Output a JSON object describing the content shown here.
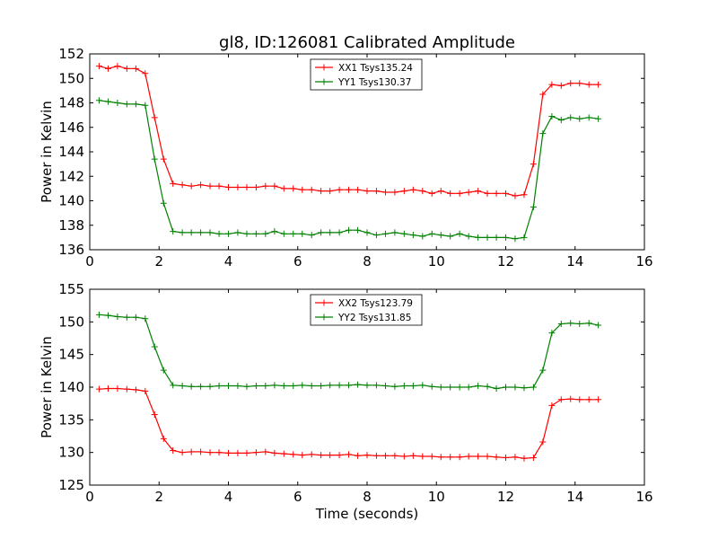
{
  "figure": {
    "title": "gl8, ID:126081 Calibrated Amplitude"
  },
  "colors": {
    "red": "#ff0000",
    "green": "#008000",
    "axes": "#000000",
    "background": "#ffffff"
  },
  "chart_data": [
    {
      "type": "line",
      "title": "gl8, ID:126081 Calibrated Amplitude",
      "xlabel": "",
      "ylabel": "Power in Kelvin",
      "xlim": [
        0,
        16
      ],
      "ylim": [
        136,
        152
      ],
      "xticks": [
        "0",
        "2",
        "4",
        "6",
        "8",
        "10",
        "12",
        "14",
        "16"
      ],
      "yticks": [
        "136",
        "138",
        "140",
        "142",
        "144",
        "146",
        "148",
        "150",
        "152"
      ],
      "grid": false,
      "legend_position": "upper center",
      "x": [
        0.27,
        0.53,
        0.8,
        1.07,
        1.33,
        1.6,
        1.87,
        2.13,
        2.4,
        2.67,
        2.93,
        3.2,
        3.47,
        3.73,
        4.0,
        4.27,
        4.53,
        4.8,
        5.07,
        5.33,
        5.6,
        5.87,
        6.13,
        6.4,
        6.67,
        6.93,
        7.2,
        7.47,
        7.73,
        8.0,
        8.27,
        8.53,
        8.8,
        9.07,
        9.33,
        9.6,
        9.87,
        10.13,
        10.4,
        10.67,
        10.93,
        11.2,
        11.47,
        11.73,
        12.0,
        12.27,
        12.53,
        12.8,
        13.07,
        13.33,
        13.6,
        13.87,
        14.13,
        14.4,
        14.67
      ],
      "series": [
        {
          "name": "XX1 Tsys135.24",
          "color": "#ff0000",
          "values": [
            151.0,
            150.8,
            151.0,
            150.8,
            150.8,
            150.4,
            146.8,
            143.4,
            141.4,
            141.3,
            141.2,
            141.3,
            141.2,
            141.2,
            141.1,
            141.1,
            141.1,
            141.1,
            141.2,
            141.2,
            141.0,
            141.0,
            140.9,
            140.9,
            140.8,
            140.8,
            140.9,
            140.9,
            140.9,
            140.8,
            140.8,
            140.7,
            140.7,
            140.8,
            140.9,
            140.8,
            140.6,
            140.8,
            140.6,
            140.6,
            140.7,
            140.8,
            140.6,
            140.6,
            140.6,
            140.4,
            140.5,
            143.0,
            148.7,
            149.5,
            149.4,
            149.6,
            149.6,
            149.5,
            149.5
          ]
        },
        {
          "name": "YY1 Tsys130.37",
          "color": "#008000",
          "values": [
            148.2,
            148.1,
            148.0,
            147.9,
            147.9,
            147.8,
            143.4,
            139.8,
            137.5,
            137.4,
            137.4,
            137.4,
            137.4,
            137.3,
            137.3,
            137.4,
            137.3,
            137.3,
            137.3,
            137.5,
            137.3,
            137.3,
            137.3,
            137.2,
            137.4,
            137.4,
            137.4,
            137.6,
            137.6,
            137.4,
            137.2,
            137.3,
            137.4,
            137.3,
            137.2,
            137.1,
            137.3,
            137.2,
            137.1,
            137.3,
            137.1,
            137.0,
            137.0,
            137.0,
            137.0,
            136.9,
            137.0,
            139.5,
            145.5,
            146.9,
            146.6,
            146.8,
            146.7,
            146.8,
            146.7
          ]
        }
      ]
    },
    {
      "type": "line",
      "title": "",
      "xlabel": "Time (seconds)",
      "ylabel": "Power in Kelvin",
      "xlim": [
        0,
        16
      ],
      "ylim": [
        125,
        155
      ],
      "xticks": [
        "0",
        "2",
        "4",
        "6",
        "8",
        "10",
        "12",
        "14",
        "16"
      ],
      "yticks": [
        "125",
        "130",
        "135",
        "140",
        "145",
        "150",
        "155"
      ],
      "grid": false,
      "legend_position": "upper center",
      "x": [
        0.27,
        0.53,
        0.8,
        1.07,
        1.33,
        1.6,
        1.87,
        2.13,
        2.4,
        2.67,
        2.93,
        3.2,
        3.47,
        3.73,
        4.0,
        4.27,
        4.53,
        4.8,
        5.07,
        5.33,
        5.6,
        5.87,
        6.13,
        6.4,
        6.67,
        6.93,
        7.2,
        7.47,
        7.73,
        8.0,
        8.27,
        8.53,
        8.8,
        9.07,
        9.33,
        9.6,
        9.87,
        10.13,
        10.4,
        10.67,
        10.93,
        11.2,
        11.47,
        11.73,
        12.0,
        12.27,
        12.53,
        12.8,
        13.07,
        13.33,
        13.6,
        13.87,
        14.13,
        14.4,
        14.67
      ],
      "series": [
        {
          "name": "XX2 Tsys123.79",
          "color": "#ff0000",
          "values": [
            139.7,
            139.8,
            139.8,
            139.7,
            139.6,
            139.4,
            135.8,
            132.1,
            130.3,
            130.0,
            130.1,
            130.1,
            130.0,
            130.0,
            129.9,
            129.9,
            129.9,
            130.0,
            130.1,
            129.9,
            129.8,
            129.7,
            129.6,
            129.7,
            129.6,
            129.6,
            129.6,
            129.7,
            129.5,
            129.6,
            129.5,
            129.5,
            129.5,
            129.4,
            129.5,
            129.4,
            129.4,
            129.3,
            129.3,
            129.3,
            129.4,
            129.4,
            129.4,
            129.3,
            129.2,
            129.3,
            129.1,
            129.2,
            131.6,
            137.2,
            138.1,
            138.2,
            138.1,
            138.1,
            138.1
          ]
        },
        {
          "name": "YY2 Tsys131.85",
          "color": "#008000",
          "values": [
            151.1,
            151.0,
            150.8,
            150.7,
            150.7,
            150.5,
            146.2,
            142.6,
            140.3,
            140.2,
            140.1,
            140.1,
            140.1,
            140.2,
            140.2,
            140.2,
            140.1,
            140.2,
            140.2,
            140.3,
            140.2,
            140.2,
            140.3,
            140.2,
            140.2,
            140.3,
            140.3,
            140.3,
            140.4,
            140.3,
            140.3,
            140.2,
            140.1,
            140.2,
            140.2,
            140.3,
            140.1,
            140.0,
            140.0,
            140.0,
            140.0,
            140.2,
            140.1,
            139.8,
            140.0,
            140.0,
            139.9,
            140.0,
            142.6,
            148.3,
            149.7,
            149.8,
            149.7,
            149.8,
            149.5
          ]
        }
      ]
    }
  ]
}
